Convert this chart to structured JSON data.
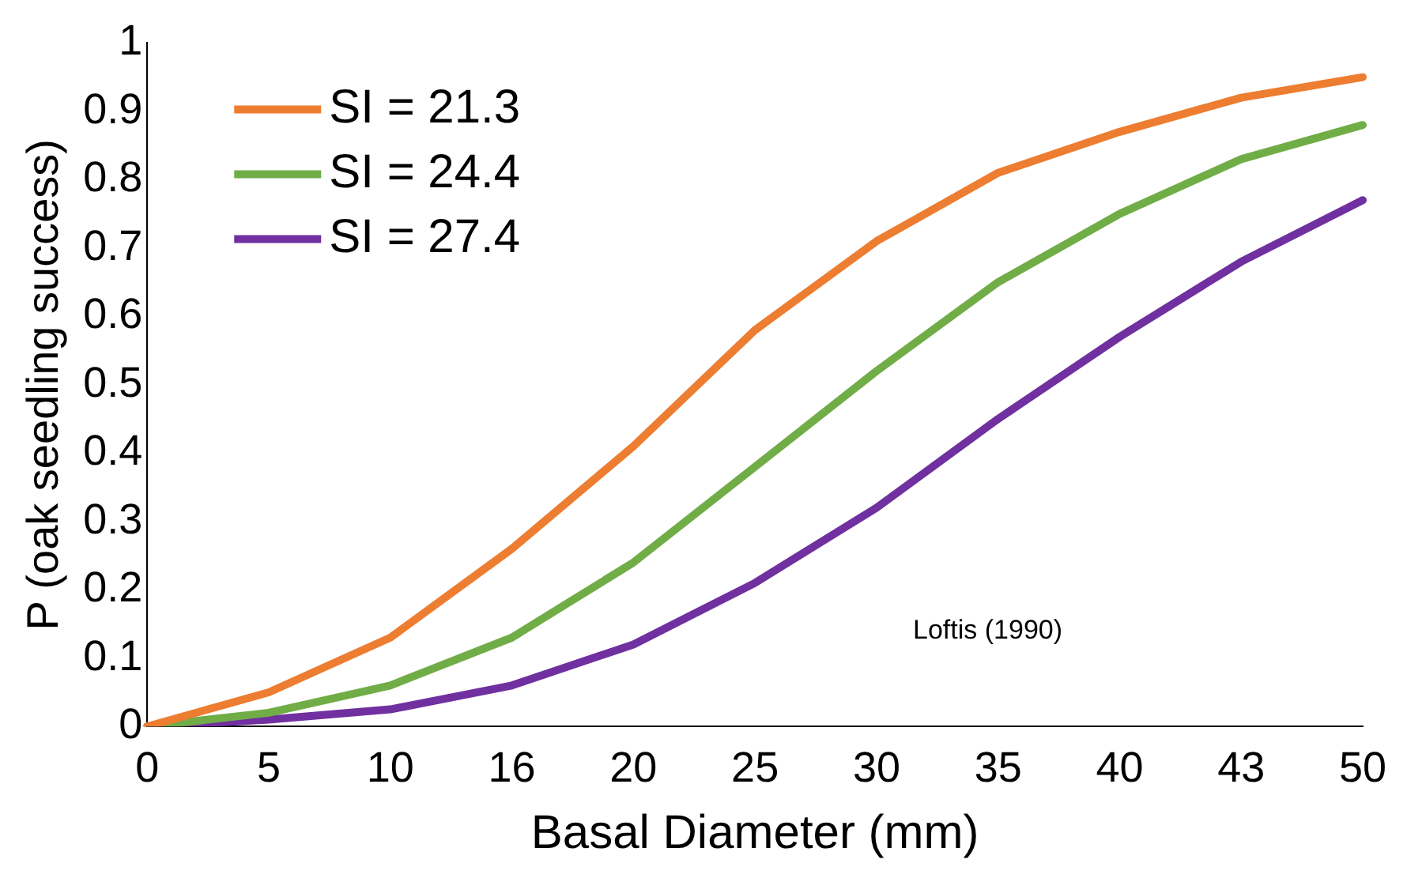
{
  "chart_data": {
    "type": "line",
    "xlabel": "Basal Diameter (mm)",
    "ylabel": "P (oak seedling success)",
    "categories": [
      "0",
      "5",
      "10",
      "16",
      "20",
      "25",
      "30",
      "35",
      "40",
      "43",
      "50"
    ],
    "series": [
      {
        "name": "SI = 21.3",
        "color": "#ed7d31",
        "values": [
          0,
          0.05,
          0.13,
          0.26,
          0.41,
          0.58,
          0.71,
          0.81,
          0.87,
          0.92,
          0.95
        ]
      },
      {
        "name": "SI = 24.4",
        "color": "#70ad47",
        "values": [
          0,
          0.02,
          0.06,
          0.13,
          0.24,
          0.38,
          0.52,
          0.65,
          0.75,
          0.83,
          0.88
        ]
      },
      {
        "name": "SI = 27.4",
        "color": "#7030a0",
        "values": [
          0,
          0.01,
          0.025,
          0.06,
          0.12,
          0.21,
          0.32,
          0.45,
          0.57,
          0.68,
          0.77
        ]
      }
    ],
    "ylim": [
      0,
      1
    ],
    "yticks": [
      0,
      0.1,
      0.2,
      0.3,
      0.4,
      0.5,
      0.6,
      0.7,
      0.8,
      0.9,
      1
    ],
    "grid": false,
    "legend": "top left",
    "marker": "none",
    "line_style": "solid",
    "annotations": [
      "Loftis (1990)"
    ]
  }
}
